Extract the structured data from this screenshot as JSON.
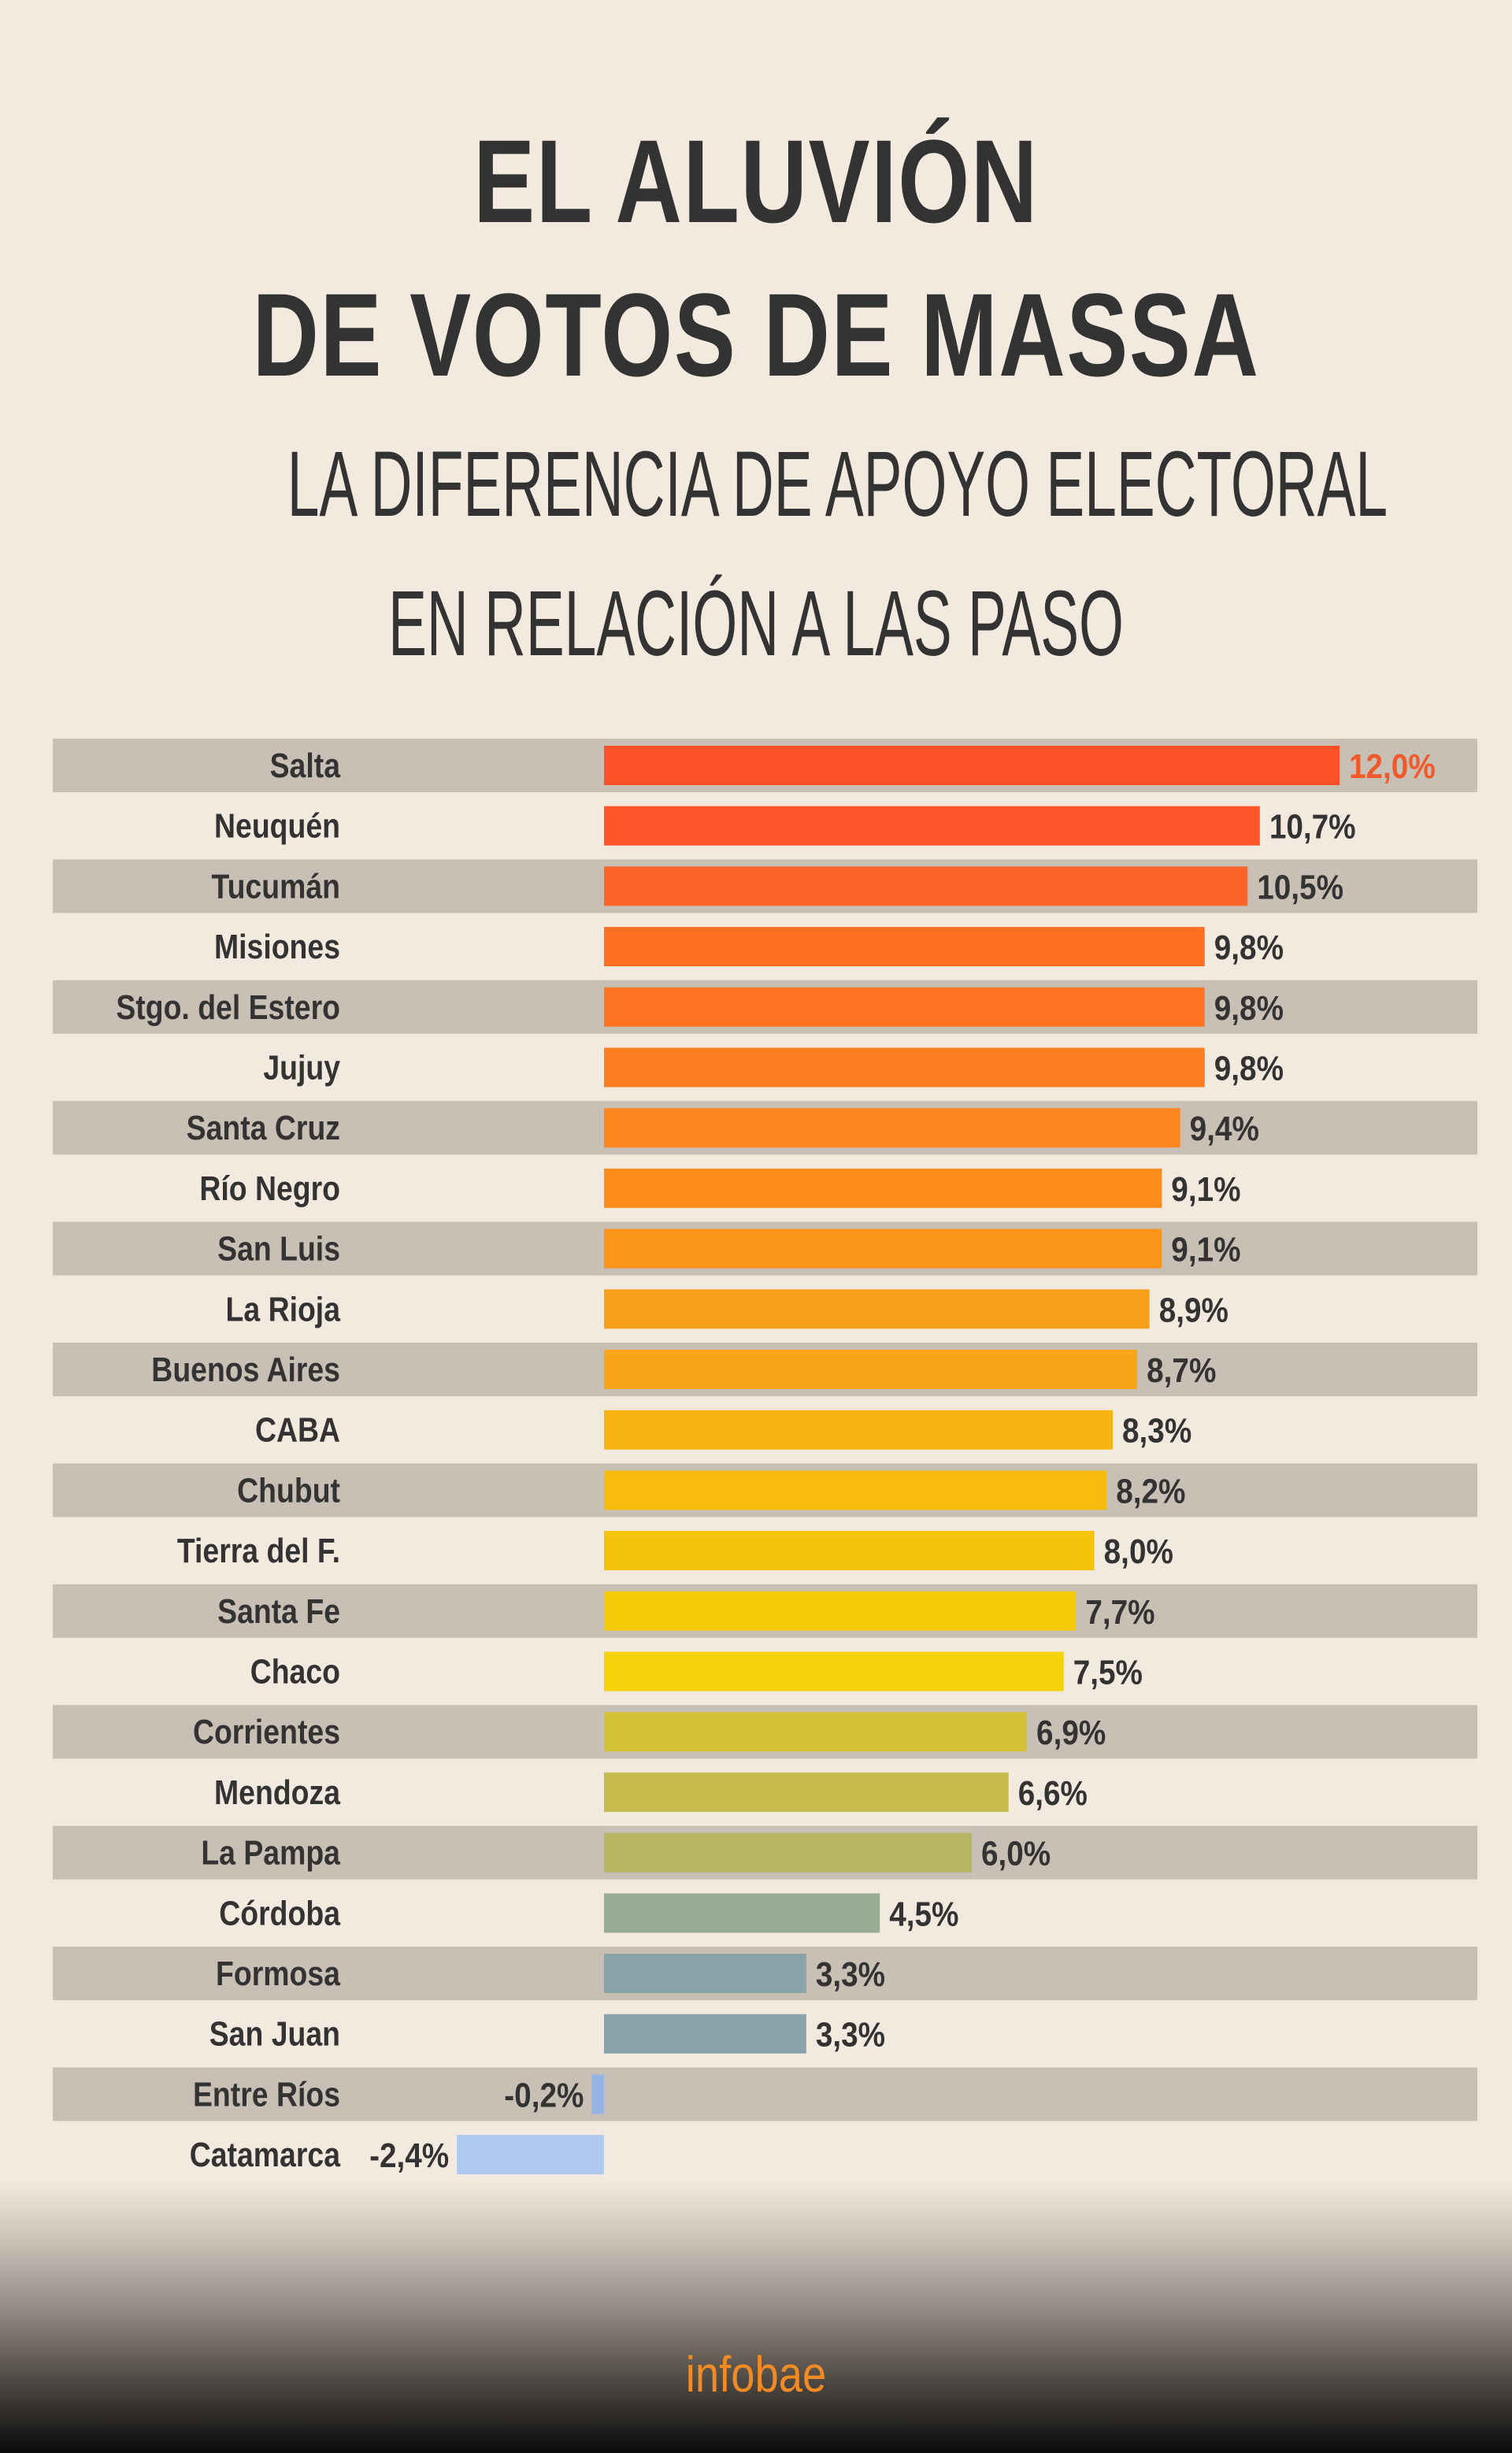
{
  "title_line1": "EL ALUVIÓN",
  "title_line2": "DE VOTOS DE MASSA",
  "subtitle_line1": "LA DIFERENCIA DE APOYO ELECTORAL",
  "subtitle_line2": "EN RELACIÓN A LAS PASO",
  "logo": "infobae",
  "colors": {
    "background": "#f3eadf",
    "stripe": "#c8bfb5",
    "text": "#333333",
    "highlight_label": "#f05a2a",
    "logo": "#f08a23"
  },
  "chart_data": {
    "type": "bar",
    "orientation": "horizontal",
    "title": "LA DIFERENCIA DE APOYO ELECTORAL EN RELACIÓN A LAS PASO",
    "xlabel": "",
    "ylabel": "",
    "xlim": [
      -2.4,
      12.0
    ],
    "grid": false,
    "categories": [
      "Salta",
      "Neuquén",
      "Tucumán",
      "Misiones",
      "Stgo. del Estero",
      "Jujuy",
      "Santa Cruz",
      "Río Negro",
      "San Luis",
      "La Rioja",
      "Buenos Aires",
      "CABA",
      "Chubut",
      "Tierra del F.",
      "Santa Fe",
      "Chaco",
      "Corrientes",
      "Mendoza",
      "La Pampa",
      "Córdoba",
      "Formosa",
      "San Juan",
      "Entre Ríos",
      "Catamarca"
    ],
    "values": [
      12.0,
      10.7,
      10.5,
      9.8,
      9.8,
      9.8,
      9.4,
      9.1,
      9.1,
      8.9,
      8.7,
      8.3,
      8.2,
      8.0,
      7.7,
      7.5,
      6.9,
      6.6,
      6.0,
      4.5,
      3.3,
      3.3,
      -0.2,
      -2.4
    ],
    "value_labels": [
      "12,0%",
      "10,7%",
      "10,5%",
      "9,8%",
      "9,8%",
      "9,8%",
      "9,4%",
      "9,1%",
      "9,1%",
      "8,9%",
      "8,7%",
      "8,3%",
      "8,2%",
      "8,0%",
      "7,7%",
      "7,5%",
      "6,9%",
      "6,6%",
      "6,0%",
      "4,5%",
      "3,3%",
      "3,3%",
      "-0,2%",
      "-2,4%"
    ],
    "bar_colors": [
      "#fe512a",
      "#fe552a",
      "#fe6328",
      "#fe6f24",
      "#fe7422",
      "#fd7e20",
      "#fd861e",
      "#fc8d1c",
      "#fb941a",
      "#f9a01a",
      "#f8a518",
      "#f8b211",
      "#f6bb0e",
      "#f6c30b",
      "#f6cb09",
      "#f6d30a",
      "#d5c336",
      "#c6bb4c",
      "#b8b661",
      "#98ad93",
      "#88a4aa",
      "#88a4aa",
      "#94b5e4",
      "#adc9ee"
    ],
    "highlight_index": 0
  }
}
